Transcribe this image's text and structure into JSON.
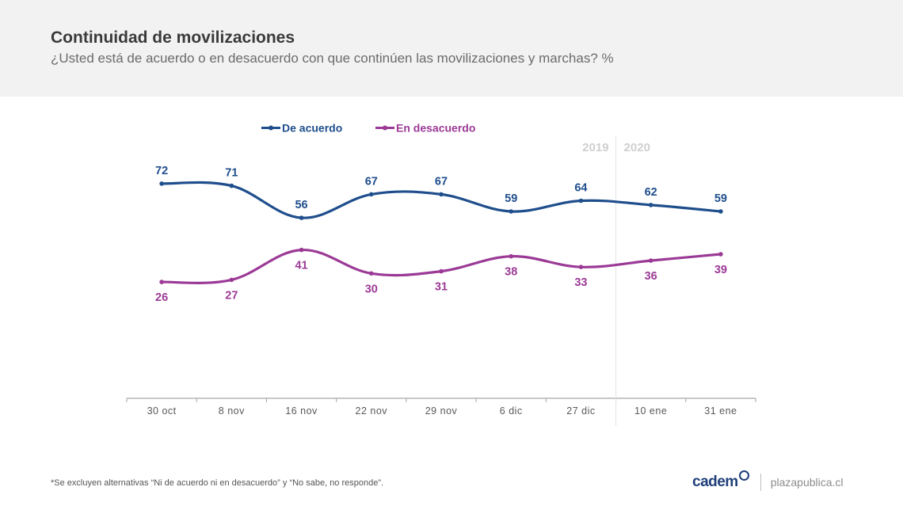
{
  "header": {
    "title": "Continuidad de movilizaciones",
    "subtitle": "¿Usted está de acuerdo o en desacuerdo con que continúen las movilizaciones y marchas? %"
  },
  "footer": {
    "note": "*Se excluyen alternativas “Ni de acuerdo ni en desacuerdo” y “No sabe, no responde”.",
    "logo": "cadem",
    "site": "plazapublica.cl"
  },
  "colors": {
    "de_acuerdo": "#1f4e8c",
    "en_desacuerdo": "#9b3a96",
    "axis": "#a6a6a6",
    "year": "#cfcfcf"
  },
  "chart_data": {
    "type": "line",
    "categories": [
      "30 oct",
      "8 nov",
      "16 nov",
      "22 nov",
      "29 nov",
      "6 dic",
      "27 dic",
      "10 ene",
      "31 ene"
    ],
    "series": [
      {
        "name": "De acuerdo",
        "values": [
          72,
          71,
          56,
          67,
          67,
          59,
          64,
          62,
          59
        ]
      },
      {
        "name": "En desacuerdo",
        "values": [
          26,
          27,
          41,
          30,
          31,
          38,
          33,
          36,
          39
        ]
      }
    ],
    "year_labels": [
      "2019",
      "2020"
    ],
    "year_split_after": "27 dic",
    "legend_position": "top-left",
    "ylim": [
      0,
      100
    ],
    "grid": false,
    "title": "",
    "xlabel": "",
    "ylabel": ""
  }
}
